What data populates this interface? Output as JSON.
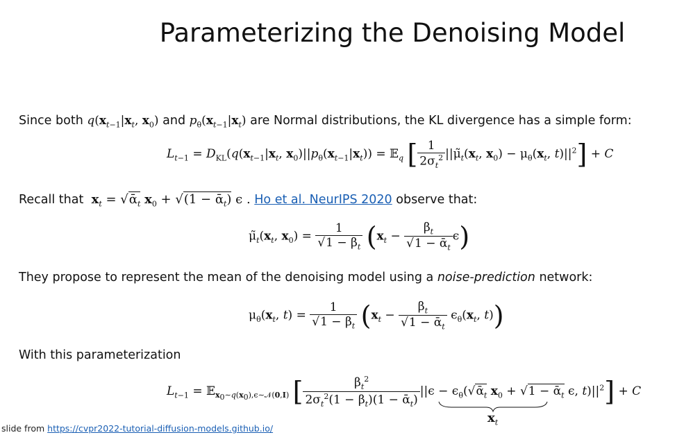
{
  "slide": {
    "title": "Parameterizing the Denoising Model",
    "line1_a": "Since both",
    "line1_q": "q(x",
    "line1_b": "and",
    "line1_c": "are Normal distributions, the KL divergence has a simple form:",
    "recall_a": "Recall that",
    "recall_link": "Ho et al. NeurIPS 2020",
    "recall_b": "observe that:",
    "propose_a": "They propose to represent the mean of the denoising model using a",
    "propose_em": "noise-prediction",
    "propose_b": "network:",
    "with_param": "With this parameterization",
    "footer_text": "slide from",
    "footer_link": "https://cvpr2022-tutorial-diffusion-models.github.io/"
  }
}
